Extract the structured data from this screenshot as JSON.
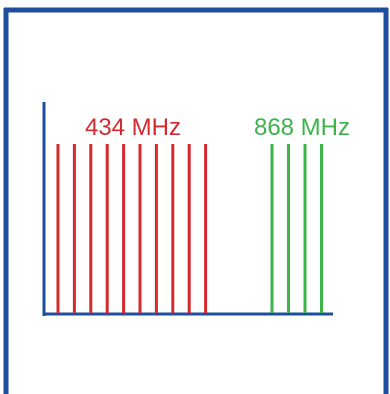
{
  "colors": {
    "frame": "#1f4e9c",
    "axis": "#1f4e9c",
    "band_434": "#d42a2f",
    "band_868": "#3db34a",
    "background": "#ffffff"
  },
  "bands": [
    {
      "label": "434 MHz",
      "color": "#d42a2f",
      "channel_count": 10
    },
    {
      "label": "868 MHz",
      "color": "#3db34a",
      "channel_count": 4
    }
  ]
}
